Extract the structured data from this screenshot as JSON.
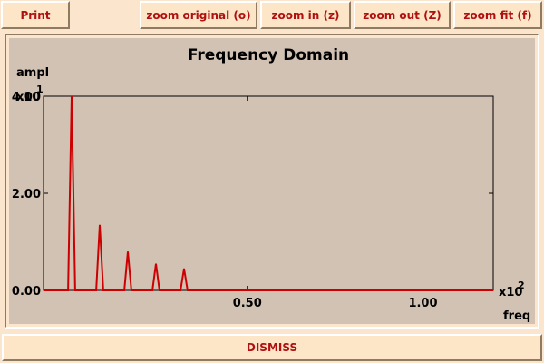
{
  "toolbar": {
    "print_label": "Print",
    "zoom_original_label": "zoom original (o)",
    "zoom_in_label": "zoom in (z)",
    "zoom_out_label": "zoom out (Z)",
    "zoom_fit_label": "zoom fit (f)"
  },
  "dismiss_label": "DISMISS",
  "chart_data": {
    "type": "line",
    "title": "Frequency Domain",
    "ylabel": "ampl",
    "xlabel": "freq",
    "x_multiplier_label": "x10",
    "x_multiplier_exp": "2",
    "y_multiplier_label": "x10",
    "y_multiplier_exp": "1",
    "xlim": [
      -0.08,
      1.2
    ],
    "ylim": [
      0,
      4.0
    ],
    "x_ticks": [
      0.5,
      1.0
    ],
    "x_tick_labels": [
      "0.50",
      "1.00"
    ],
    "y_ticks": [
      0,
      2.0,
      4.0
    ],
    "y_tick_labels": [
      "0.00",
      "2.00",
      "4.00"
    ],
    "grid": false,
    "colors": {
      "series": "#cc0000",
      "text": "#000000"
    },
    "series": [
      {
        "x": [
          -0.08,
          -0.01,
          0.0,
          0.01,
          0.07,
          0.08,
          0.09,
          0.15,
          0.16,
          0.17,
          0.23,
          0.24,
          0.25,
          0.31,
          0.32,
          0.33,
          1.2
        ],
        "y": [
          0,
          0,
          4.0,
          0,
          0,
          1.35,
          0,
          0,
          0.8,
          0,
          0,
          0.55,
          0,
          0,
          0.45,
          0,
          0
        ]
      }
    ]
  }
}
